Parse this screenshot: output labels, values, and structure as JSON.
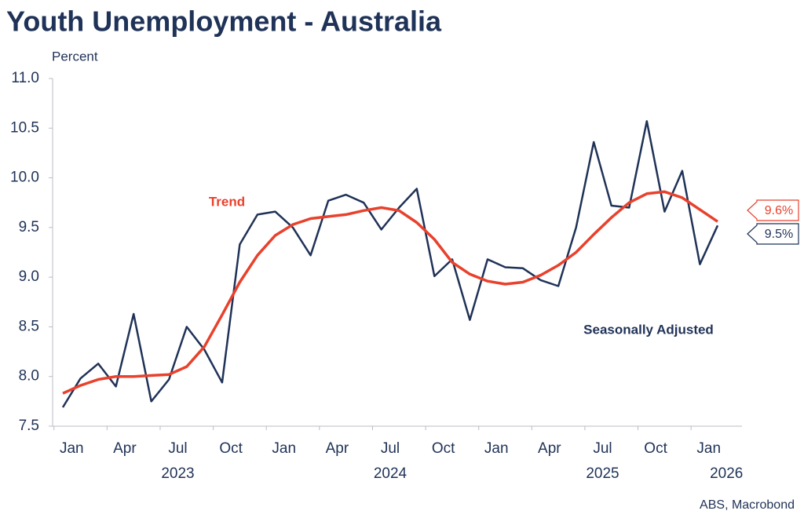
{
  "chart_data": {
    "type": "line",
    "title": "Youth Unemployment - Australia",
    "y_label": "Percent",
    "source": "ABS, Macrobond",
    "x": [
      "2023-01",
      "2023-02",
      "2023-03",
      "2023-04",
      "2023-05",
      "2023-06",
      "2023-07",
      "2023-08",
      "2023-09",
      "2023-10",
      "2023-11",
      "2023-12",
      "2024-01",
      "2024-02",
      "2024-03",
      "2024-04",
      "2024-05",
      "2024-06",
      "2024-07",
      "2024-08",
      "2024-09",
      "2024-10",
      "2024-11",
      "2024-12",
      "2025-01",
      "2025-02",
      "2025-03",
      "2025-04",
      "2025-05",
      "2025-06",
      "2025-07",
      "2025-08",
      "2025-09",
      "2025-10",
      "2025-11",
      "2025-12",
      "2026-01",
      "2026-02"
    ],
    "series": [
      {
        "name": "Trend",
        "color": "#e8412c",
        "values": [
          7.83,
          7.91,
          7.97,
          8.0,
          8.0,
          8.01,
          8.02,
          8.1,
          8.3,
          8.62,
          8.95,
          9.22,
          9.42,
          9.53,
          9.59,
          9.61,
          9.63,
          9.67,
          9.7,
          9.67,
          9.55,
          9.38,
          9.15,
          9.03,
          8.96,
          8.93,
          8.95,
          9.02,
          9.12,
          9.25,
          9.43,
          9.6,
          9.75,
          9.84,
          9.86,
          9.8,
          9.68,
          9.56
        ],
        "value_labels": [
          null,
          null,
          null,
          null,
          null,
          null,
          null,
          null,
          null,
          null,
          null,
          null,
          null,
          null,
          null,
          null,
          null,
          null,
          null,
          null,
          null,
          null,
          null,
          null,
          null,
          null,
          null,
          null,
          null,
          null,
          null,
          null,
          null,
          null,
          null,
          null,
          null,
          "9.6%"
        ]
      },
      {
        "name": "Seasonally Adjusted",
        "color": "#1f3257",
        "values": [
          7.69,
          7.98,
          8.13,
          7.9,
          8.63,
          7.75,
          7.97,
          8.5,
          8.27,
          7.94,
          9.33,
          9.63,
          9.66,
          9.5,
          9.22,
          9.77,
          9.83,
          9.75,
          9.48,
          9.7,
          9.89,
          9.01,
          9.18,
          8.57,
          9.18,
          9.1,
          9.09,
          8.97,
          8.91,
          9.5,
          10.36,
          9.72,
          9.7,
          10.57,
          9.66,
          10.07,
          9.13,
          9.52
        ],
        "value_labels": [
          null,
          null,
          null,
          null,
          null,
          null,
          null,
          null,
          null,
          null,
          null,
          null,
          null,
          null,
          null,
          null,
          null,
          null,
          null,
          null,
          null,
          null,
          null,
          null,
          null,
          null,
          null,
          null,
          null,
          null,
          null,
          null,
          null,
          null,
          null,
          null,
          null,
          "9.5%"
        ]
      }
    ],
    "ylim": [
      7.5,
      11.0
    ],
    "yticks": [
      7.5,
      {
        "value": 8,
        "label": "8.0"
      },
      8.5,
      {
        "value": 9,
        "label": "9.0"
      },
      9.5,
      {
        "value": 10,
        "label": "10.0"
      },
      10.5,
      {
        "value": 11,
        "label": "11.0"
      }
    ],
    "xticks": [
      {
        "value": "2023-01",
        "label": "Jan"
      },
      {
        "value": "2023-04",
        "label": "Apr"
      },
      {
        "value": "2023-07",
        "label": "Jul"
      },
      {
        "value": "2023-10",
        "label": "Oct"
      },
      {
        "value": "2024-01",
        "label": "Jan"
      },
      {
        "value": "2024-04",
        "label": "Apr"
      },
      {
        "value": "2024-07",
        "label": "Jul"
      },
      {
        "value": "2024-10",
        "label": "Oct"
      },
      {
        "value": "2025-01",
        "label": "Jan"
      },
      {
        "value": "2025-04",
        "label": "Apr"
      },
      {
        "value": "2025-07",
        "label": "Jul"
      },
      {
        "value": "2025-10",
        "label": "Oct"
      },
      {
        "value": "2026-01",
        "label": "Jan"
      }
    ],
    "year_labels": [
      "2023",
      "2024",
      "2025",
      "2026"
    ],
    "grid": false
  }
}
